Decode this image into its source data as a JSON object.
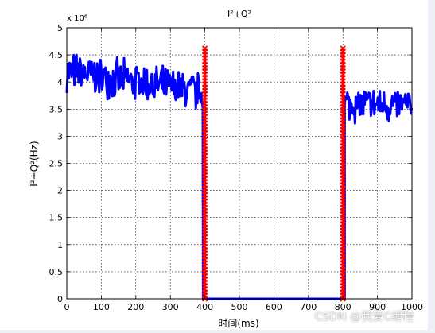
{
  "chart_data": {
    "type": "line",
    "title": "I²+Q²",
    "xlabel": "时间(ms)",
    "ylabel": "I²+Q²(Hz)",
    "exponent_label": "x 10⁶",
    "xlim": [
      0,
      1000
    ],
    "ylim": [
      0,
      5
    ],
    "x_ticks": [
      0,
      100,
      200,
      300,
      400,
      500,
      600,
      700,
      800,
      900,
      1000
    ],
    "y_ticks": [
      0,
      0.5,
      1,
      1.5,
      2,
      2.5,
      3,
      3.5,
      4,
      4.5,
      5
    ],
    "grid": true,
    "series": [
      {
        "color": "#0000ff",
        "segments": [
          {
            "x_start": 0,
            "x_end": 395,
            "level_start": 4.2,
            "level_end": 3.8,
            "spread": 0.3
          },
          {
            "x_start": 395,
            "x_end": 805,
            "level_start": 0.0,
            "level_end": 0.0,
            "spread": 0.0
          },
          {
            "x_start": 805,
            "x_end": 1000,
            "level_start": 3.6,
            "level_end": 3.55,
            "spread": 0.28
          }
        ]
      },
      {
        "color": "#ff0000",
        "marker": "x",
        "vertical_markers": [
          {
            "x": 400,
            "y_from": 0,
            "y_to": 4.62
          },
          {
            "x": 800,
            "y_from": 0,
            "y_to": 4.62
          }
        ]
      }
    ]
  },
  "watermark": "CSDN @我爱C编程"
}
